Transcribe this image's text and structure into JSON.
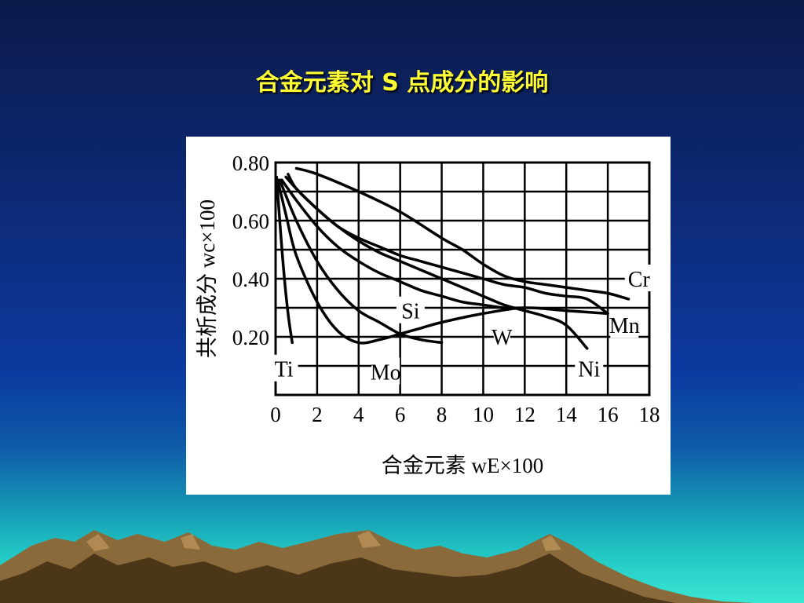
{
  "slide": {
    "title": "合金元素对 S 点成分的影响"
  },
  "chart_data": {
    "type": "line",
    "title": "",
    "xlabel": "合金元素 wE×100",
    "ylabel": "共析成分 wc×100",
    "xlim": [
      0,
      18
    ],
    "ylim": [
      0,
      0.8
    ],
    "x_ticks": [
      0,
      2,
      4,
      6,
      8,
      10,
      12,
      14,
      16,
      18
    ],
    "y_ticks": [
      0.2,
      0.4,
      0.6,
      0.8
    ],
    "y_tick_labels": [
      "0.20",
      "0.40",
      "0.60",
      "0.80"
    ],
    "grid": true,
    "series": [
      {
        "name": "Ti",
        "label_at": [
          0.4,
          0.09
        ],
        "x": [
          0.05,
          0.2,
          0.4,
          0.6,
          0.8
        ],
        "y": [
          0.75,
          0.6,
          0.42,
          0.28,
          0.18
        ]
      },
      {
        "name": "Mo",
        "label_at": [
          5.3,
          0.08
        ],
        "x": [
          0.1,
          0.5,
          1,
          2,
          3,
          4,
          5,
          6,
          7,
          8,
          10,
          12,
          14,
          16
        ],
        "y": [
          0.74,
          0.62,
          0.48,
          0.32,
          0.22,
          0.18,
          0.19,
          0.21,
          0.23,
          0.25,
          0.28,
          0.3,
          0.29,
          0.28
        ]
      },
      {
        "name": "Si",
        "label_at": [
          6.5,
          0.29
        ],
        "x": [
          0.2,
          1,
          2,
          3,
          4,
          5,
          6,
          7,
          8
        ],
        "y": [
          0.74,
          0.6,
          0.46,
          0.36,
          0.29,
          0.25,
          0.21,
          0.19,
          0.18
        ]
      },
      {
        "name": "W",
        "label_at": [
          10.9,
          0.2
        ],
        "x": [
          0.3,
          1,
          2,
          3,
          4,
          5,
          6,
          7,
          8,
          9,
          10,
          11,
          12
        ],
        "y": [
          0.74,
          0.67,
          0.58,
          0.51,
          0.46,
          0.42,
          0.39,
          0.36,
          0.34,
          0.32,
          0.31,
          0.3,
          0.3
        ]
      },
      {
        "name": "Ni",
        "label_at": [
          15.1,
          0.09
        ],
        "x": [
          0.5,
          1,
          2,
          3,
          4,
          5,
          6,
          7,
          8,
          9,
          10,
          11,
          12,
          13,
          14,
          15
        ],
        "y": [
          0.75,
          0.71,
          0.64,
          0.58,
          0.53,
          0.49,
          0.46,
          0.43,
          0.4,
          0.37,
          0.34,
          0.31,
          0.29,
          0.27,
          0.24,
          0.16
        ]
      },
      {
        "name": "Mn",
        "label_at": [
          16.8,
          0.24
        ],
        "x": [
          0.6,
          1,
          2,
          3,
          4,
          5,
          6,
          7,
          8,
          9,
          10,
          11,
          12,
          13,
          14,
          15,
          16
        ],
        "y": [
          0.76,
          0.71,
          0.64,
          0.58,
          0.54,
          0.51,
          0.48,
          0.46,
          0.44,
          0.42,
          0.4,
          0.38,
          0.37,
          0.35,
          0.34,
          0.33,
          0.28
        ]
      },
      {
        "name": "Cr",
        "label_at": [
          17.5,
          0.4
        ],
        "x": [
          1,
          2,
          4,
          6,
          8,
          9,
          10,
          11,
          12,
          13,
          14,
          15,
          16,
          17
        ],
        "y": [
          0.78,
          0.76,
          0.7,
          0.63,
          0.54,
          0.5,
          0.45,
          0.41,
          0.39,
          0.38,
          0.37,
          0.36,
          0.35,
          0.33
        ]
      }
    ]
  }
}
